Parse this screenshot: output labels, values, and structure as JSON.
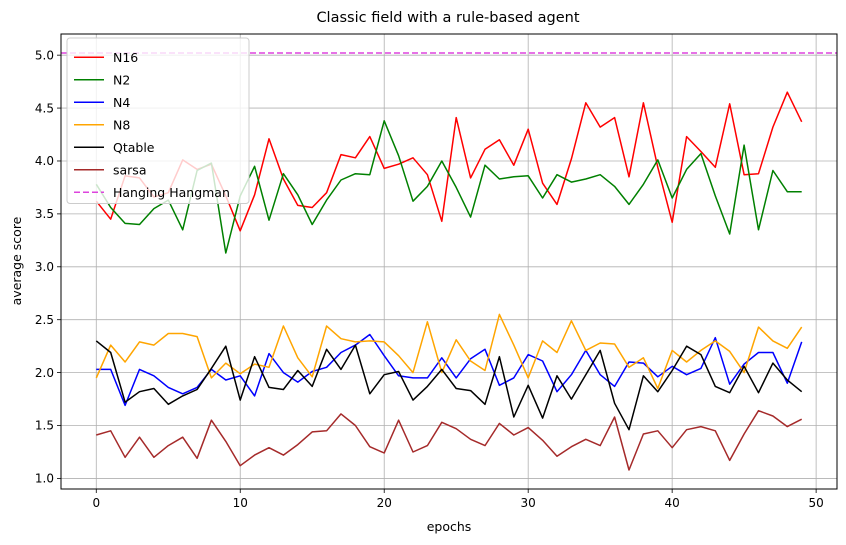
{
  "chart_data": {
    "type": "line",
    "title": "Classic field with a rule-based agent",
    "xlabel": "epochs",
    "ylabel": "average score",
    "xlim": [
      -2.45,
      51.45
    ],
    "ylim": [
      0.9,
      5.2
    ],
    "xticks": [
      0,
      10,
      20,
      30,
      40,
      50
    ],
    "yticks": [
      1.0,
      1.5,
      2.0,
      2.5,
      3.0,
      3.5,
      4.0,
      4.5,
      5.0
    ],
    "grid": true,
    "legend_position": "top-left",
    "x": [
      0,
      1,
      2,
      3,
      4,
      5,
      6,
      7,
      8,
      9,
      10,
      11,
      12,
      13,
      14,
      15,
      16,
      17,
      18,
      19,
      20,
      21,
      22,
      23,
      24,
      25,
      26,
      27,
      28,
      29,
      30,
      31,
      32,
      33,
      34,
      35,
      36,
      37,
      38,
      39,
      40,
      41,
      42,
      43,
      44,
      45,
      46,
      47,
      48,
      49
    ],
    "series": [
      {
        "name": "N16",
        "color": "#ff0000",
        "style": "solid",
        "values": [
          3.62,
          3.45,
          3.86,
          3.84,
          3.66,
          3.7,
          4.01,
          3.92,
          3.97,
          3.67,
          3.34,
          3.68,
          4.21,
          3.83,
          3.58,
          3.56,
          3.7,
          4.06,
          4.03,
          4.23,
          3.93,
          3.97,
          4.03,
          3.87,
          3.43,
          4.41,
          3.84,
          4.11,
          4.2,
          3.96,
          4.3,
          3.79,
          3.59,
          4.02,
          4.55,
          4.32,
          4.41,
          3.85,
          4.55,
          3.94,
          3.42,
          4.23,
          4.09,
          3.94,
          4.54,
          3.87,
          3.88,
          4.32,
          4.65,
          4.37
        ]
      },
      {
        "name": "N2",
        "color": "#008000",
        "style": "solid",
        "values": [
          3.78,
          3.56,
          3.41,
          3.4,
          3.55,
          3.63,
          3.35,
          3.91,
          3.98,
          3.13,
          3.67,
          3.95,
          3.44,
          3.88,
          3.68,
          3.4,
          3.63,
          3.82,
          3.88,
          3.87,
          4.38,
          4.05,
          3.62,
          3.76,
          4.0,
          3.75,
          3.47,
          3.96,
          3.83,
          3.85,
          3.86,
          3.65,
          3.87,
          3.8,
          3.83,
          3.87,
          3.76,
          3.59,
          3.78,
          4.01,
          3.65,
          3.92,
          4.07,
          3.67,
          3.31,
          4.15,
          3.35,
          3.91,
          3.71,
          3.71
        ]
      },
      {
        "name": "N4",
        "color": "#0000ff",
        "style": "solid",
        "values": [
          2.03,
          2.03,
          1.69,
          2.03,
          1.97,
          1.86,
          1.8,
          1.86,
          2.03,
          1.93,
          1.97,
          1.78,
          2.18,
          2.0,
          1.91,
          2.01,
          2.05,
          2.19,
          2.26,
          2.36,
          2.16,
          1.97,
          1.95,
          1.95,
          2.14,
          1.95,
          2.13,
          2.22,
          1.88,
          1.95,
          2.17,
          2.11,
          1.82,
          1.98,
          2.21,
          1.98,
          1.87,
          2.1,
          2.09,
          1.96,
          2.06,
          1.98,
          2.04,
          2.33,
          1.89,
          2.08,
          2.19,
          2.19,
          1.9,
          2.29
        ]
      },
      {
        "name": "N8",
        "color": "#ffa500",
        "style": "solid",
        "values": [
          1.95,
          2.26,
          2.1,
          2.29,
          2.26,
          2.37,
          2.37,
          2.34,
          1.95,
          2.09,
          1.99,
          2.08,
          2.05,
          2.44,
          2.14,
          1.96,
          2.44,
          2.32,
          2.29,
          2.3,
          2.29,
          2.16,
          2.0,
          2.48,
          2.0,
          2.31,
          2.11,
          2.02,
          2.55,
          2.26,
          1.95,
          2.3,
          2.19,
          2.49,
          2.21,
          2.28,
          2.27,
          2.05,
          2.14,
          1.85,
          2.21,
          2.1,
          2.21,
          2.3,
          2.2,
          2.0,
          2.43,
          2.3,
          2.23,
          2.43
        ]
      },
      {
        "name": "Qtable",
        "color": "#000000",
        "style": "solid",
        "values": [
          2.3,
          2.19,
          1.72,
          1.82,
          1.85,
          1.7,
          1.78,
          1.84,
          2.04,
          2.25,
          1.74,
          2.15,
          1.86,
          1.84,
          2.02,
          1.87,
          2.22,
          2.03,
          2.26,
          1.8,
          1.98,
          2.01,
          1.74,
          1.87,
          2.03,
          1.85,
          1.83,
          1.7,
          2.15,
          1.58,
          1.88,
          1.57,
          1.97,
          1.75,
          1.98,
          2.21,
          1.71,
          1.46,
          1.97,
          1.82,
          2.02,
          2.25,
          2.17,
          1.87,
          1.81,
          2.06,
          1.81,
          2.09,
          1.93,
          1.82
        ]
      },
      {
        "name": "sarsa",
        "color": "#a52a2a",
        "style": "solid",
        "values": [
          1.41,
          1.45,
          1.2,
          1.39,
          1.2,
          1.31,
          1.39,
          1.19,
          1.55,
          1.35,
          1.12,
          1.22,
          1.29,
          1.22,
          1.32,
          1.44,
          1.45,
          1.61,
          1.5,
          1.3,
          1.24,
          1.55,
          1.25,
          1.31,
          1.53,
          1.47,
          1.37,
          1.31,
          1.52,
          1.41,
          1.48,
          1.36,
          1.21,
          1.3,
          1.37,
          1.31,
          1.58,
          1.08,
          1.42,
          1.45,
          1.29,
          1.46,
          1.49,
          1.45,
          1.17,
          1.42,
          1.64,
          1.59,
          1.49,
          1.56
        ]
      },
      {
        "name": "Hanging Hangman",
        "color": "#dd44dd",
        "style": "dashed",
        "type": "hline",
        "value": 5.02
      }
    ]
  }
}
